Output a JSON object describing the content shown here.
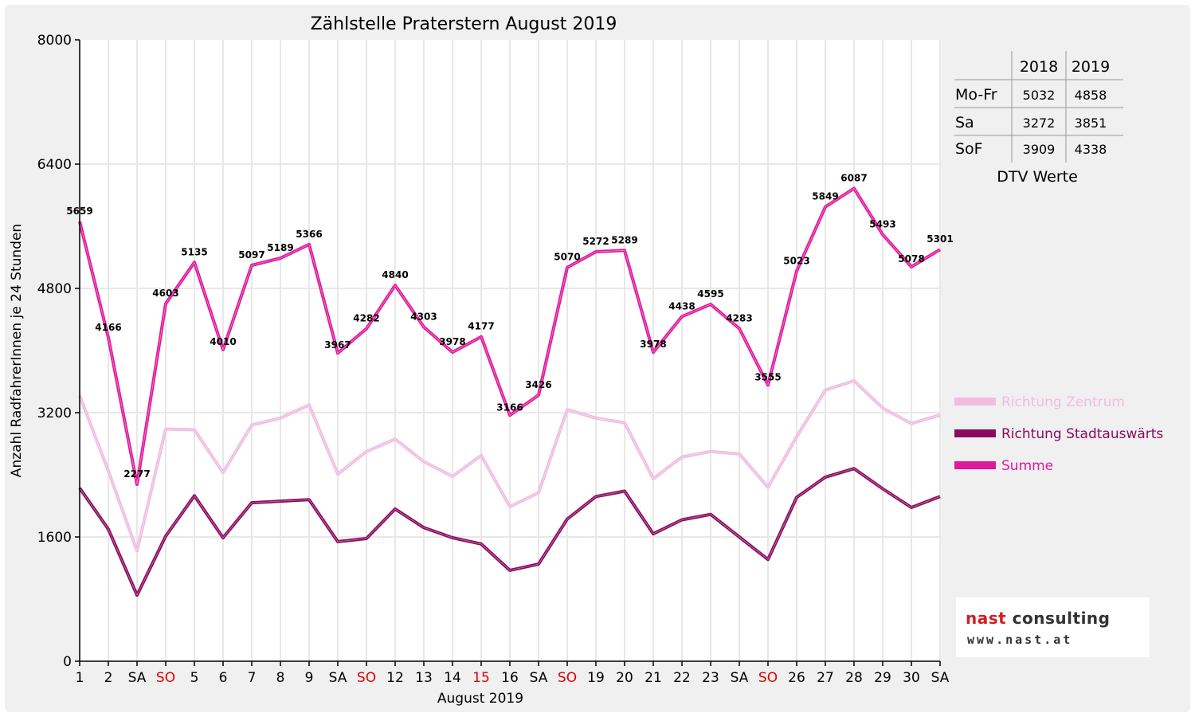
{
  "chart_data": {
    "type": "line",
    "title": "Zählstelle Praterstern August 2019",
    "xlabel": "August 2019",
    "ylabel": "Anzahl RadfahrerInnen je 24 Stunden",
    "ylim": [
      0,
      8000
    ],
    "yticks": [
      0,
      1600,
      3200,
      4800,
      6400,
      8000
    ],
    "grid": true,
    "legend_position": "right",
    "categories": [
      "1",
      "2",
      "SA",
      "SO",
      "5",
      "6",
      "7",
      "8",
      "9",
      "SA",
      "SO",
      "12",
      "13",
      "14",
      "15",
      "16",
      "SA",
      "SO",
      "19",
      "20",
      "21",
      "22",
      "23",
      "SA",
      "SO",
      "26",
      "27",
      "28",
      "29",
      "30",
      "SA"
    ],
    "red_categories": [
      3,
      10,
      14,
      17,
      24
    ],
    "series": [
      {
        "name": "Richtung Zentrum",
        "color": "#f0bce0",
        "values": [
          3420,
          2450,
          1420,
          2990,
          2980,
          2430,
          3040,
          3130,
          3300,
          2410,
          2700,
          2860,
          2570,
          2380,
          2650,
          1990,
          2170,
          3240,
          3130,
          3070,
          2350,
          2630,
          2700,
          2670,
          2240,
          2890,
          3490,
          3610,
          3260,
          3060,
          3170
        ]
      },
      {
        "name": "Richtung Stadtauswärts",
        "color": "#8a0a5e",
        "values": [
          2230,
          1700,
          850,
          1610,
          2130,
          1590,
          2040,
          2060,
          2080,
          1540,
          1580,
          1960,
          1720,
          1590,
          1510,
          1170,
          1250,
          1830,
          2120,
          2190,
          1640,
          1820,
          1890,
          1600,
          1310,
          2110,
          2370,
          2480,
          2220,
          1980,
          2120
        ]
      },
      {
        "name": "Summe",
        "color": "#e0189a",
        "values": [
          5659,
          4166,
          2277,
          4603,
          5135,
          4010,
          5097,
          5189,
          5366,
          3967,
          4282,
          4840,
          4303,
          3978,
          4177,
          3166,
          3426,
          5070,
          5272,
          5289,
          3978,
          4438,
          4595,
          4283,
          3555,
          5023,
          5849,
          6087,
          5493,
          5078,
          5301
        ]
      }
    ],
    "data_labels": [
      "5659",
      "4166",
      "2277",
      "4603",
      "5135",
      "4010",
      "5097",
      "5189",
      "5366",
      "3967",
      "4282",
      "4840",
      "4303",
      "3978",
      "4177",
      "3166",
      "3426",
      "5070",
      "5272",
      "5289",
      "3978",
      "4438",
      "4595",
      "4283",
      "3555",
      "5023",
      "5849",
      "6087",
      "5493",
      "5078",
      "5301"
    ]
  },
  "dtv_table": {
    "headers": [
      "",
      "2018",
      "2019"
    ],
    "rows": [
      [
        "Mo-Fr",
        "5032",
        "4858"
      ],
      [
        "Sa",
        "3272",
        "3851"
      ],
      [
        "SoF",
        "3909",
        "4338"
      ]
    ],
    "caption": "DTV Werte"
  },
  "logo": {
    "word1": "nast",
    "word2": "consulting",
    "url": "www.nast.at"
  },
  "colors": {
    "background": "#f0f0f0",
    "plot": "#ffffff",
    "weekend_label": "#e00000",
    "grid": "#e8e8e8"
  }
}
